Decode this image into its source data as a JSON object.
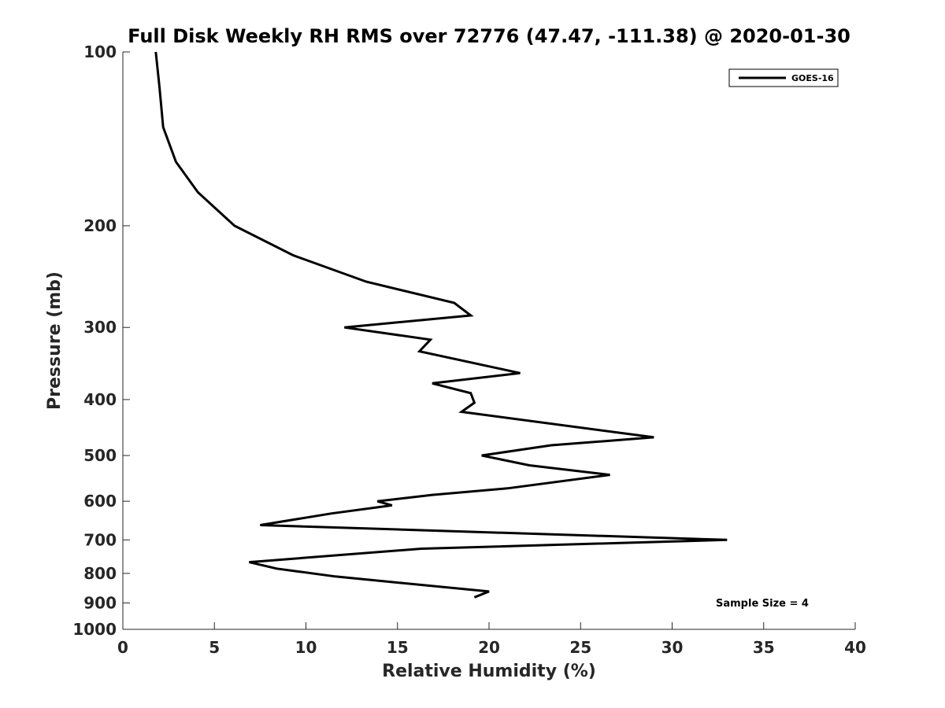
{
  "chart_data": {
    "type": "line",
    "title": "Full Disk Weekly RH RMS over 72776 (47.47, -111.38) @ 2020-01-30",
    "xlabel": "Relative Humidity (%)",
    "ylabel": "Pressure (mb)",
    "xlim": [
      0,
      40
    ],
    "ylim": [
      100,
      1000
    ],
    "yscale": "log",
    "y_reversed": true,
    "grid": false,
    "x_ticks": [
      0,
      5,
      10,
      15,
      20,
      25,
      30,
      35,
      40
    ],
    "y_ticks": [
      100,
      200,
      300,
      400,
      500,
      600,
      700,
      800,
      900,
      1000
    ],
    "legend_position": "top-right",
    "series": [
      {
        "name": "GOES-16",
        "color": "#000000",
        "x": [
          1.8,
          2.0,
          2.2,
          2.9,
          4.1,
          6.1,
          9.3,
          13.3,
          18.1,
          19.0,
          12.1,
          16.8,
          16.2,
          21.7,
          16.9,
          19.0,
          19.2,
          18.5,
          29.0,
          23.4,
          19.6,
          22.2,
          26.6,
          21.0,
          16.9,
          13.9,
          14.7,
          11.4,
          7.5,
          33.0,
          16.3,
          6.9,
          8.4,
          11.6,
          20.0,
          19.2
        ],
        "y": [
          100,
          115,
          135,
          155,
          175,
          200,
          225,
          250,
          272,
          286,
          300,
          315,
          330,
          360,
          375,
          390,
          405,
          420,
          465,
          480,
          500,
          520,
          540,
          570,
          585,
          600,
          610,
          630,
          660,
          700,
          725,
          765,
          785,
          810,
          860,
          880
        ]
      }
    ],
    "annotations": [
      {
        "text": "Sample Size = 4",
        "position": "bottom-right"
      }
    ]
  }
}
